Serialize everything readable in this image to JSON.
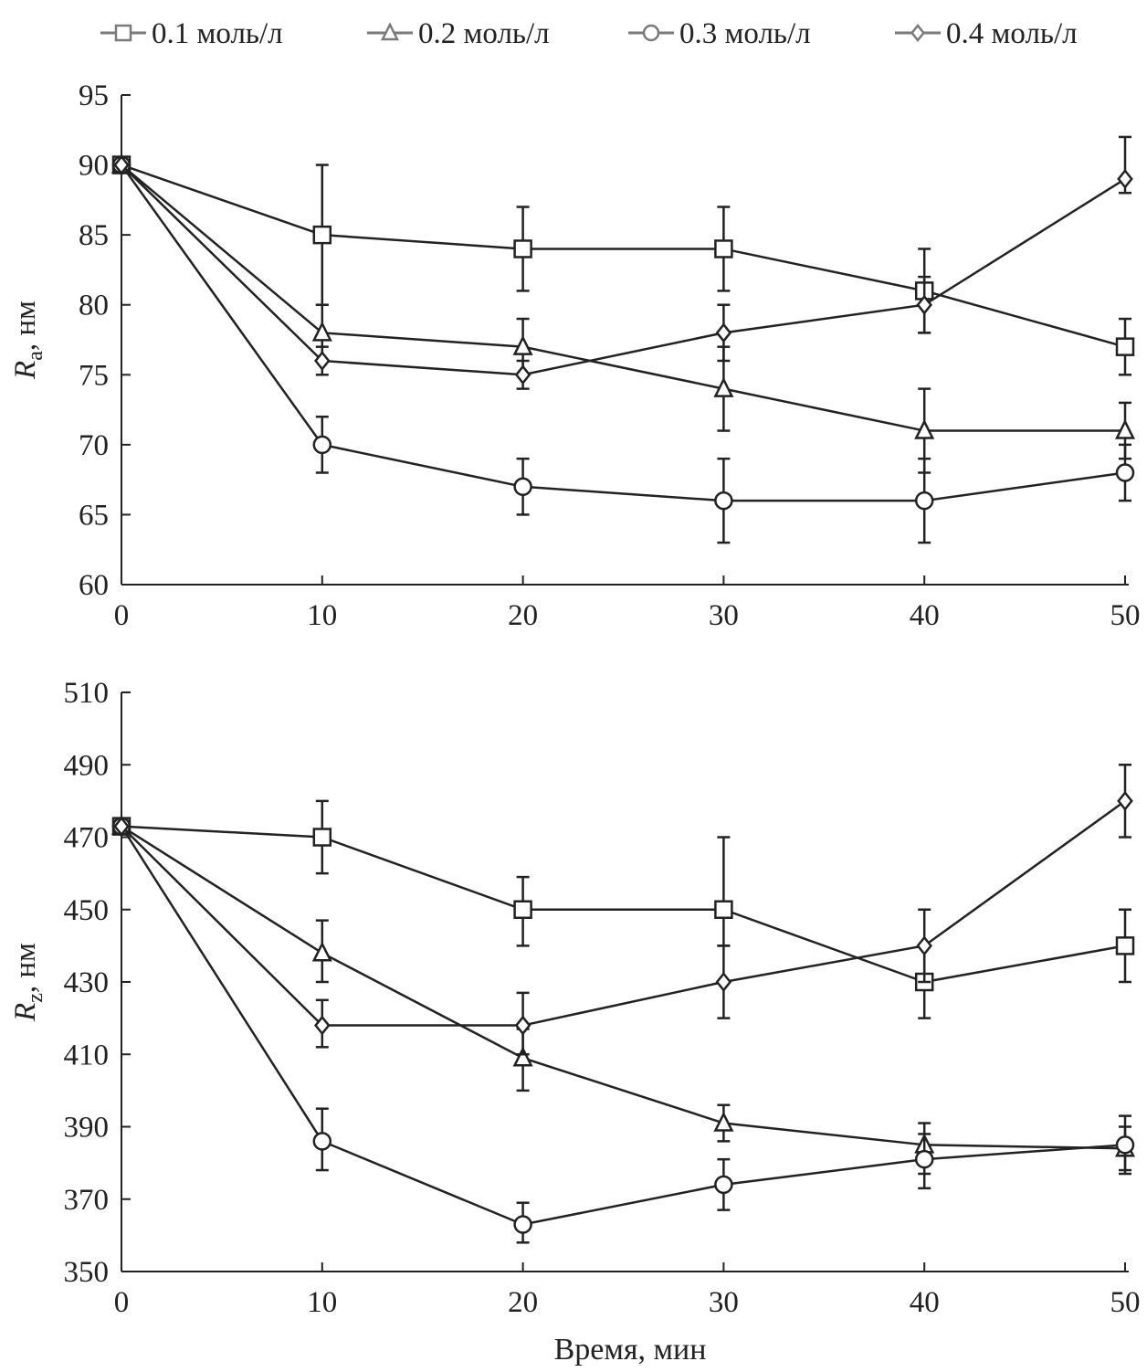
{
  "chart_data": [
    {
      "type": "line",
      "panel": "top",
      "ylabel": {
        "symbol": "R",
        "sub": "a",
        "unit": ", нм"
      },
      "xlabel": "",
      "x": [
        0,
        10,
        20,
        30,
        40,
        50
      ],
      "xlim": [
        0,
        50
      ],
      "ylim": [
        60,
        95
      ],
      "xticks": [
        0,
        10,
        20,
        30,
        40,
        50
      ],
      "yticks": [
        60,
        65,
        70,
        75,
        80,
        85,
        90,
        95
      ],
      "series": [
        {
          "name": "0.1 моль/л",
          "marker": "square",
          "values": [
            90,
            85,
            84,
            84,
            81,
            77
          ],
          "errors": [
            [
              90,
              90
            ],
            [
              80,
              90
            ],
            [
              81,
              87
            ],
            [
              81,
              87
            ],
            [
              78,
              84
            ],
            [
              75,
              79
            ]
          ]
        },
        {
          "name": "0.2 моль/л",
          "marker": "triangle",
          "values": [
            90,
            78,
            77,
            74,
            71,
            71
          ],
          "errors": [
            [
              90,
              90
            ],
            [
              76,
              80
            ],
            [
              75,
              79
            ],
            [
              71,
              77
            ],
            [
              68,
              74
            ],
            [
              69,
              73
            ]
          ]
        },
        {
          "name": "0.3 моль/л",
          "marker": "circle",
          "values": [
            90,
            70,
            67,
            66,
            66,
            68
          ],
          "errors": [
            [
              90,
              90
            ],
            [
              68,
              72
            ],
            [
              65,
              69
            ],
            [
              63,
              69
            ],
            [
              63,
              69
            ],
            [
              66,
              70
            ]
          ]
        },
        {
          "name": "0.4 моль/л",
          "marker": "diamond",
          "values": [
            90,
            76,
            75,
            78,
            80,
            89
          ],
          "errors": [
            [
              90,
              90
            ],
            [
              75,
              77
            ],
            [
              74,
              76
            ],
            [
              76,
              80
            ],
            [
              78,
              82
            ],
            [
              88,
              92
            ]
          ]
        }
      ]
    },
    {
      "type": "line",
      "panel": "bottom",
      "ylabel": {
        "symbol": "R",
        "sub": "z",
        "unit": ", нм"
      },
      "xlabel": "Время, мин",
      "x": [
        0,
        10,
        20,
        30,
        40,
        50
      ],
      "xlim": [
        0,
        50
      ],
      "ylim": [
        350,
        510
      ],
      "xticks": [
        0,
        10,
        20,
        30,
        40,
        50
      ],
      "yticks": [
        350,
        370,
        390,
        410,
        430,
        450,
        470,
        490,
        510
      ],
      "series": [
        {
          "name": "0.1 моль/л",
          "marker": "square",
          "values": [
            473,
            470,
            450,
            450,
            430,
            440
          ],
          "errors": [
            [
              473,
              473
            ],
            [
              460,
              480
            ],
            [
              440,
              459
            ],
            [
              440,
              470
            ],
            [
              420,
              440
            ],
            [
              430,
              450
            ]
          ]
        },
        {
          "name": "0.2 моль/л",
          "marker": "triangle",
          "values": [
            473,
            438,
            409,
            391,
            385,
            384
          ],
          "errors": [
            [
              473,
              473
            ],
            [
              430,
              447
            ],
            [
              400,
              417
            ],
            [
              386,
              396
            ],
            [
              377,
              391
            ],
            [
              377,
              390
            ]
          ]
        },
        {
          "name": "0.3 моль/л",
          "marker": "circle",
          "values": [
            473,
            386,
            363,
            374,
            381,
            385
          ],
          "errors": [
            [
              473,
              473
            ],
            [
              378,
              395
            ],
            [
              358,
              369
            ],
            [
              367,
              381
            ],
            [
              373,
              388
            ],
            [
              378,
              393
            ]
          ]
        },
        {
          "name": "0.4 моль/л",
          "marker": "diamond",
          "values": [
            473,
            418,
            418,
            430,
            440,
            480
          ],
          "errors": [
            [
              473,
              473
            ],
            [
              412,
              425
            ],
            [
              410,
              427
            ],
            [
              420,
              440
            ],
            [
              430,
              450
            ],
            [
              470,
              490
            ]
          ]
        }
      ]
    }
  ],
  "legend": {
    "placement": "top",
    "entries": [
      "0.1 моль/л",
      "0.2 моль/л",
      "0.3 моль/л",
      "0.4 моль/л"
    ],
    "markers": [
      "square",
      "triangle",
      "circle",
      "diamond"
    ]
  },
  "colors": {
    "line": "#222222",
    "legend": "#7a7a7a"
  }
}
